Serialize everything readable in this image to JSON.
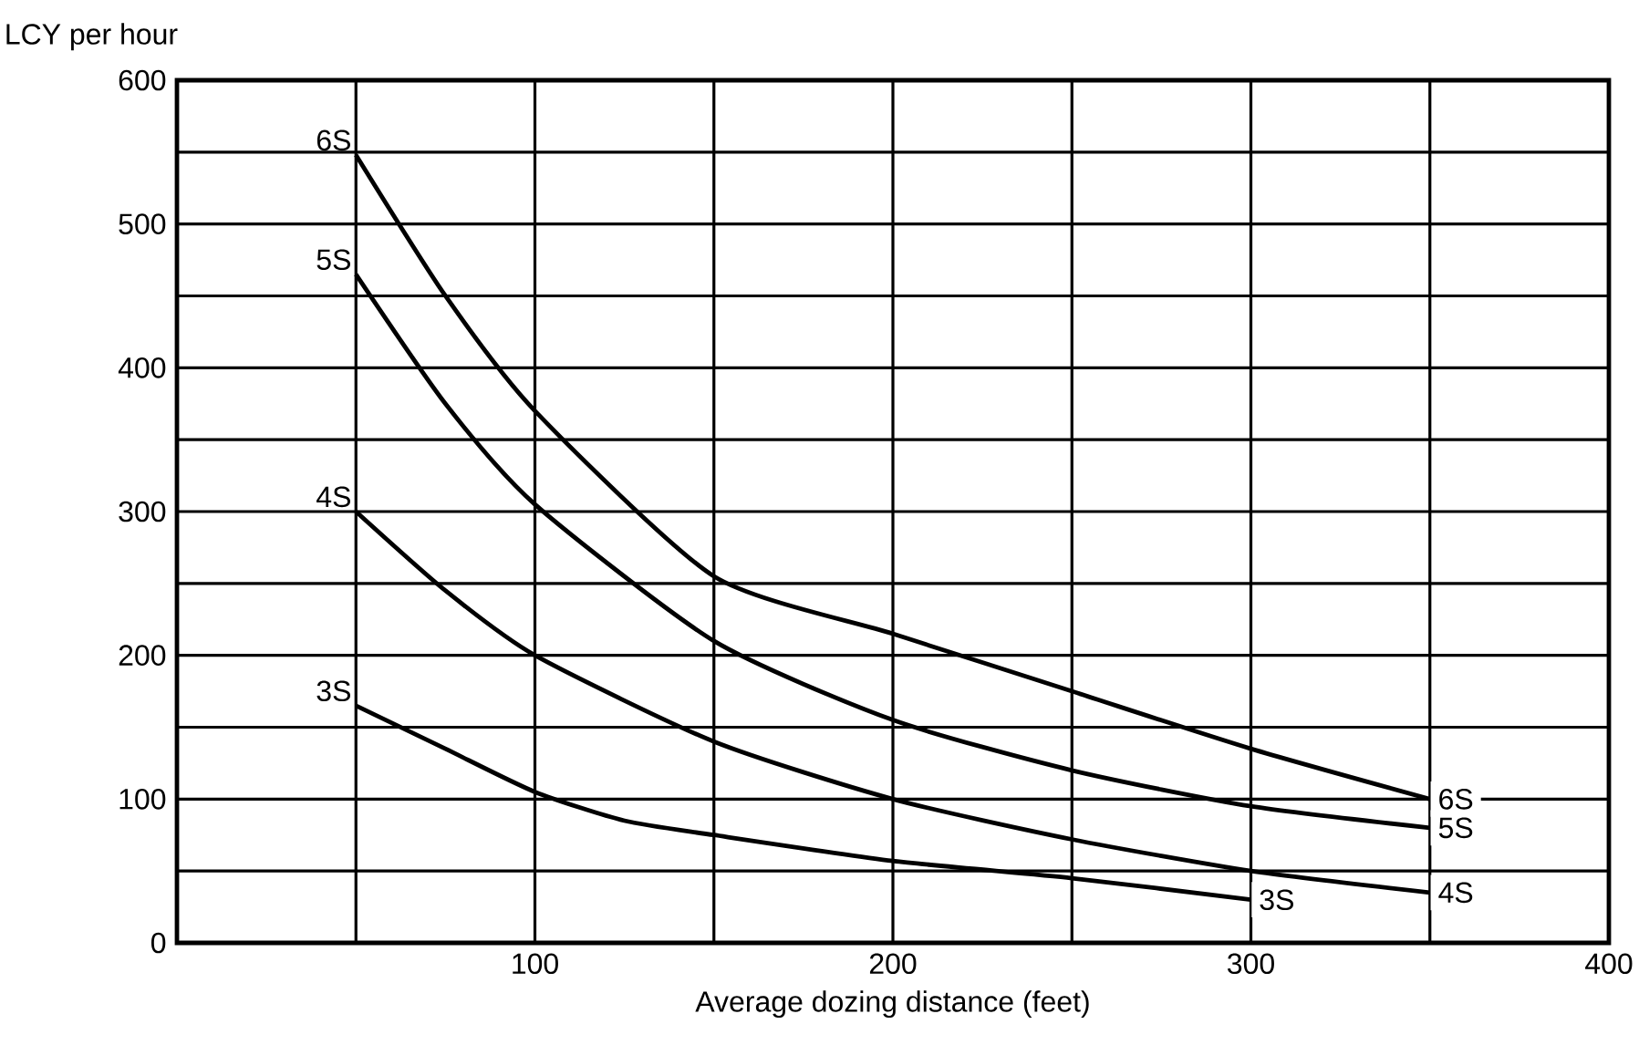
{
  "chart_data": {
    "type": "line",
    "xlabel": "Average dozing distance (feet)",
    "ylabel": "LCY per hour",
    "xlim": [
      0,
      400
    ],
    "ylim": [
      0,
      600
    ],
    "xticks": [
      {
        "value": 50,
        "label": null
      },
      100,
      {
        "value": 150,
        "label": null
      },
      200,
      {
        "value": 250,
        "label": null
      },
      300,
      {
        "value": 350,
        "label": null
      },
      400
    ],
    "yticks": [
      0,
      {
        "value": 50,
        "label": null
      },
      100,
      {
        "value": 150,
        "label": null
      },
      200,
      {
        "value": 250,
        "label": null
      },
      300,
      {
        "value": 350,
        "label": null
      },
      400,
      {
        "value": 450,
        "label": null
      },
      500,
      {
        "value": 550,
        "label": null
      },
      600
    ],
    "grid": true,
    "legend": false,
    "marker": "none",
    "line_style": "solid",
    "series": [
      {
        "name": "6S",
        "color": "#000000",
        "x": [
          50,
          75,
          100,
          150,
          200,
          250,
          300,
          350
        ],
        "values": [
          548,
          450,
          370,
          255,
          215,
          175,
          135,
          100
        ]
      },
      {
        "name": "5S",
        "color": "#000000",
        "x": [
          50,
          75,
          100,
          150,
          200,
          250,
          300,
          350
        ],
        "values": [
          465,
          375,
          305,
          210,
          155,
          120,
          95,
          80
        ]
      },
      {
        "name": "4S",
        "color": "#000000",
        "x": [
          50,
          75,
          100,
          150,
          200,
          250,
          300,
          350
        ],
        "values": [
          300,
          245,
          200,
          140,
          100,
          72,
          50,
          35
        ]
      },
      {
        "name": "3S",
        "color": "#000000",
        "x": [
          50,
          75,
          100,
          125,
          150,
          200,
          250,
          300
        ],
        "values": [
          165,
          135,
          105,
          85,
          75,
          57,
          45,
          30
        ]
      }
    ]
  }
}
